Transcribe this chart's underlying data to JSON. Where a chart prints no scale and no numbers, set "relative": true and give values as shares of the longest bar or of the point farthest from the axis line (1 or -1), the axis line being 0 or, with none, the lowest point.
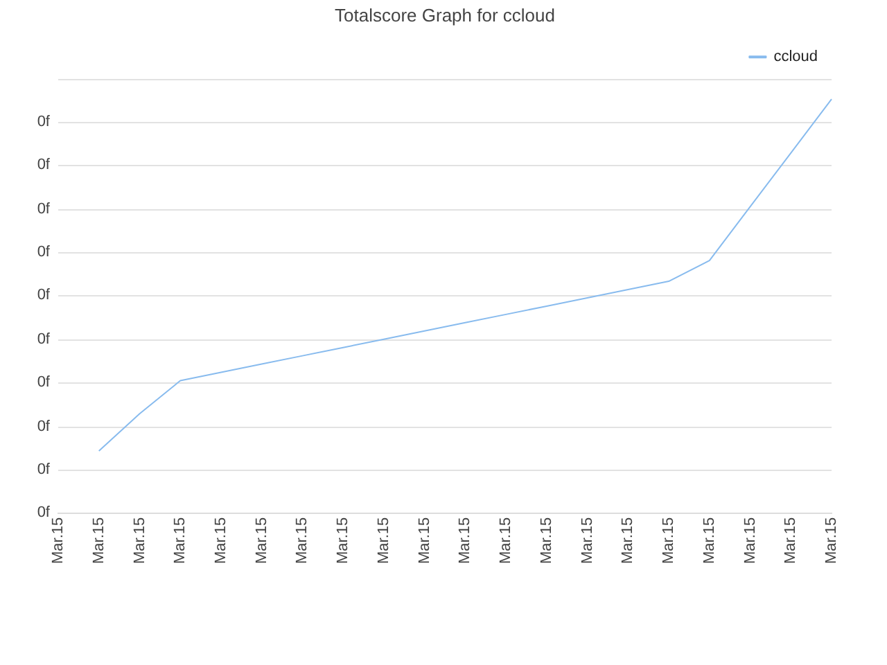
{
  "chart_data": {
    "type": "line",
    "title": "Totalscore Graph for ccloud",
    "relative": true,
    "categories": [
      "Mar.15",
      "Mar.15",
      "Mar.15",
      "Mar.15",
      "Mar.15",
      "Mar.15",
      "Mar.15",
      "Mar.15",
      "Mar.15",
      "Mar.15",
      "Mar.15",
      "Mar.15",
      "Mar.15",
      "Mar.15",
      "Mar.15",
      "Mar.15",
      "Mar.15",
      "Mar.15",
      "Mar.15",
      "Mar.15"
    ],
    "series": [
      {
        "name": "ccloud",
        "color": "#88bbee",
        "values": [
          null,
          0.15,
          0.24,
          0.32,
          0.34,
          0.36,
          0.38,
          0.4,
          0.42,
          0.44,
          0.46,
          0.48,
          0.5,
          0.52,
          0.54,
          0.56,
          0.61,
          0.74,
          0.87,
          1
        ]
      }
    ],
    "annotations": [
      "0f",
      "0f",
      "0f",
      "0f",
      "0f",
      "0f",
      "0f",
      "0f",
      "0f",
      "0f"
    ],
    "grid": "y",
    "legend": "top right",
    "marker": "none"
  }
}
